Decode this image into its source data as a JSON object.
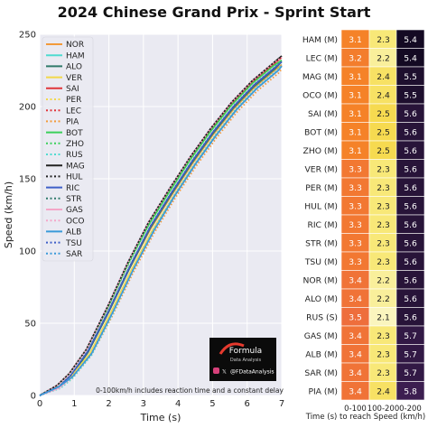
{
  "title": "2024 Chinese Grand Prix - Sprint Start",
  "badge": {
    "brand": "Formula",
    "tagline": "Data Analysis",
    "handle": "@FDataAnalysis",
    "note": "0-100km/h includes reaction time and a constant delay"
  },
  "chart_data": [
    {
      "type": "line",
      "xlabel": "Time (s)",
      "ylabel": "Speed (km/h)",
      "xlim": [
        0,
        7
      ],
      "ylim": [
        0,
        250
      ],
      "xticks": [
        0,
        1,
        2,
        3,
        4,
        5,
        6,
        7
      ],
      "yticks": [
        0,
        50,
        100,
        150,
        200,
        250
      ],
      "grid": true,
      "legend_position": "top-left",
      "series": [
        {
          "name": "NOR",
          "color": "#f29a3a",
          "dash": "solid",
          "x": [
            0,
            0.55,
            0.9,
            1.4,
            2,
            2.6,
            3.2,
            3.8,
            4.4,
            5,
            5.6,
            6.2,
            6.8,
            7
          ],
          "y": [
            0,
            6,
            14,
            30,
            58,
            88,
            115,
            138,
            160,
            180,
            198,
            213,
            225,
            229
          ]
        },
        {
          "name": "HAM",
          "color": "#4fdbd0",
          "dash": "solid",
          "x": [
            0,
            0.5,
            0.85,
            1.35,
            1.95,
            2.55,
            3.15,
            3.75,
            4.35,
            4.95,
            5.55,
            6.15,
            6.75,
            7
          ],
          "y": [
            0,
            7,
            15,
            32,
            61,
            92,
            120,
            143,
            165,
            185,
            203,
            218,
            230,
            235
          ]
        },
        {
          "name": "ALO",
          "color": "#2f7a6a",
          "dash": "solid",
          "x": [
            0,
            0.55,
            0.9,
            1.4,
            2,
            2.6,
            3.2,
            3.8,
            4.4,
            5,
            5.6,
            6.2,
            6.8,
            7
          ],
          "y": [
            0,
            6,
            13,
            30,
            58,
            88,
            116,
            139,
            161,
            181,
            199,
            214,
            226,
            231
          ]
        },
        {
          "name": "VER",
          "color": "#f2d84a",
          "dash": "solid",
          "x": [
            0,
            0.55,
            0.9,
            1.45,
            2.05,
            2.65,
            3.25,
            3.85,
            4.45,
            5.05,
            5.65,
            6.25,
            6.85,
            7
          ],
          "y": [
            0,
            6,
            13,
            29,
            57,
            87,
            114,
            137,
            159,
            179,
            197,
            212,
            224,
            228
          ]
        },
        {
          "name": "SAI",
          "color": "#e0353a",
          "dash": "solid",
          "x": [
            0,
            0.5,
            0.85,
            1.35,
            1.95,
            2.55,
            3.15,
            3.75,
            4.35,
            4.95,
            5.55,
            6.15,
            6.75,
            7
          ],
          "y": [
            0,
            7,
            15,
            32,
            60,
            91,
            119,
            142,
            164,
            184,
            202,
            217,
            229,
            234
          ]
        },
        {
          "name": "PER",
          "color": "#f2d84a",
          "dash": "dotted",
          "x": [
            0,
            0.55,
            0.9,
            1.45,
            2.05,
            2.65,
            3.25,
            3.85,
            4.45,
            5.05,
            5.65,
            6.25,
            6.85,
            7
          ],
          "y": [
            0,
            6,
            13,
            29,
            56,
            86,
            113,
            137,
            159,
            179,
            197,
            212,
            224,
            228
          ]
        },
        {
          "name": "LEC",
          "color": "#e0353a",
          "dash": "dotted",
          "x": [
            0,
            0.5,
            0.85,
            1.35,
            1.95,
            2.55,
            3.15,
            3.75,
            4.35,
            4.95,
            5.55,
            6.15,
            6.75,
            7
          ],
          "y": [
            0,
            7,
            15,
            32,
            61,
            92,
            120,
            143,
            165,
            185,
            203,
            218,
            230,
            235
          ]
        },
        {
          "name": "PIA",
          "color": "#f29a3a",
          "dash": "dotted",
          "x": [
            0,
            0.55,
            0.95,
            1.5,
            2.1,
            2.7,
            3.3,
            3.9,
            4.5,
            5.1,
            5.7,
            6.3,
            6.9,
            7
          ],
          "y": [
            0,
            5,
            12,
            28,
            55,
            85,
            112,
            136,
            158,
            178,
            196,
            211,
            223,
            226
          ]
        },
        {
          "name": "BOT",
          "color": "#3ad05a",
          "dash": "solid",
          "x": [
            0,
            0.5,
            0.85,
            1.35,
            1.95,
            2.55,
            3.15,
            3.75,
            4.35,
            4.95,
            5.55,
            6.15,
            6.75,
            7
          ],
          "y": [
            0,
            7,
            15,
            32,
            60,
            91,
            118,
            141,
            163,
            183,
            201,
            216,
            228,
            232
          ]
        },
        {
          "name": "ZHO",
          "color": "#3ad05a",
          "dash": "dotted",
          "x": [
            0,
            0.5,
            0.85,
            1.35,
            1.95,
            2.55,
            3.15,
            3.75,
            4.35,
            4.95,
            5.55,
            6.15,
            6.75,
            7
          ],
          "y": [
            0,
            7,
            15,
            32,
            60,
            90,
            118,
            141,
            163,
            183,
            201,
            216,
            228,
            232
          ]
        },
        {
          "name": "RUS",
          "color": "#4fdbd0",
          "dash": "dotted",
          "x": [
            0,
            0.6,
            0.95,
            1.5,
            2.1,
            2.7,
            3.3,
            3.9,
            4.5,
            5.1,
            5.7,
            6.3,
            6.9,
            7
          ],
          "y": [
            0,
            5,
            12,
            28,
            56,
            87,
            115,
            139,
            161,
            181,
            199,
            214,
            226,
            229
          ]
        },
        {
          "name": "MAG",
          "color": "#222222",
          "dash": "solid",
          "x": [
            0,
            0.5,
            0.85,
            1.35,
            1.95,
            2.55,
            3.15,
            3.75,
            4.35,
            4.95,
            5.55,
            6.15,
            6.75,
            7
          ],
          "y": [
            0,
            7,
            15,
            32,
            61,
            92,
            120,
            143,
            165,
            185,
            203,
            218,
            230,
            235
          ]
        },
        {
          "name": "HUL",
          "color": "#222222",
          "dash": "dotted",
          "x": [
            0,
            0.55,
            0.9,
            1.4,
            2,
            2.6,
            3.2,
            3.8,
            4.4,
            5,
            5.6,
            6.2,
            6.8,
            7
          ],
          "y": [
            0,
            6,
            14,
            31,
            59,
            89,
            117,
            140,
            162,
            182,
            200,
            215,
            227,
            231
          ]
        },
        {
          "name": "RIC",
          "color": "#3f5fc8",
          "dash": "solid",
          "x": [
            0,
            0.55,
            0.9,
            1.4,
            2,
            2.6,
            3.2,
            3.8,
            4.4,
            5,
            5.6,
            6.2,
            6.8,
            7
          ],
          "y": [
            0,
            6,
            14,
            31,
            59,
            89,
            117,
            140,
            162,
            182,
            200,
            215,
            227,
            231
          ]
        },
        {
          "name": "STR",
          "color": "#2f7a6a",
          "dash": "dotted",
          "x": [
            0,
            0.55,
            0.9,
            1.4,
            2,
            2.6,
            3.2,
            3.8,
            4.4,
            5,
            5.6,
            6.2,
            6.8,
            7
          ],
          "y": [
            0,
            6,
            14,
            31,
            59,
            89,
            117,
            140,
            162,
            182,
            200,
            215,
            227,
            231
          ]
        },
        {
          "name": "GAS",
          "color": "#f4a6c8",
          "dash": "solid",
          "x": [
            0,
            0.55,
            0.95,
            1.5,
            2.1,
            2.7,
            3.3,
            3.9,
            4.5,
            5.1,
            5.7,
            6.3,
            6.9,
            7
          ],
          "y": [
            0,
            5,
            13,
            29,
            57,
            87,
            114,
            138,
            160,
            180,
            198,
            213,
            225,
            228
          ]
        },
        {
          "name": "OCO",
          "color": "#f4a6c8",
          "dash": "dotted",
          "x": [
            0,
            0.5,
            0.85,
            1.35,
            1.95,
            2.55,
            3.15,
            3.75,
            4.35,
            4.95,
            5.55,
            6.15,
            6.75,
            7
          ],
          "y": [
            0,
            7,
            15,
            32,
            61,
            92,
            120,
            143,
            165,
            185,
            203,
            218,
            230,
            234
          ]
        },
        {
          "name": "ALB",
          "color": "#3a9ad9",
          "dash": "solid",
          "x": [
            0,
            0.55,
            0.95,
            1.5,
            2.1,
            2.7,
            3.3,
            3.9,
            4.5,
            5.1,
            5.7,
            6.3,
            6.9,
            7
          ],
          "y": [
            0,
            6,
            13,
            29,
            57,
            87,
            114,
            138,
            160,
            180,
            198,
            213,
            225,
            228
          ]
        },
        {
          "name": "TSU",
          "color": "#3f5fc8",
          "dash": "dotted",
          "x": [
            0,
            0.55,
            0.9,
            1.4,
            2,
            2.6,
            3.2,
            3.8,
            4.4,
            5,
            5.6,
            6.2,
            6.8,
            7
          ],
          "y": [
            0,
            6,
            14,
            31,
            59,
            89,
            117,
            140,
            162,
            182,
            200,
            215,
            227,
            231
          ]
        },
        {
          "name": "SAR",
          "color": "#3a9ad9",
          "dash": "dotted",
          "x": [
            0,
            0.55,
            0.95,
            1.5,
            2.1,
            2.7,
            3.3,
            3.9,
            4.5,
            5.1,
            5.7,
            6.3,
            6.9,
            7
          ],
          "y": [
            0,
            6,
            13,
            29,
            57,
            87,
            114,
            138,
            160,
            180,
            198,
            213,
            225,
            228
          ]
        }
      ]
    },
    {
      "type": "table",
      "xlabel": "Time (s) to reach Speed (km/h)",
      "columns": [
        "0-100",
        "100-200",
        "0-200"
      ],
      "rows": [
        {
          "label": "HAM (M)",
          "values": [
            3.1,
            2.3,
            5.4
          ]
        },
        {
          "label": "LEC (M)",
          "values": [
            3.2,
            2.2,
            5.4
          ]
        },
        {
          "label": "MAG (M)",
          "values": [
            3.1,
            2.4,
            5.5
          ]
        },
        {
          "label": "OCO (M)",
          "values": [
            3.1,
            2.4,
            5.5
          ]
        },
        {
          "label": "SAI (M)",
          "values": [
            3.1,
            2.5,
            5.6
          ]
        },
        {
          "label": "BOT (M)",
          "values": [
            3.1,
            2.5,
            5.6
          ]
        },
        {
          "label": "ZHO (M)",
          "values": [
            3.1,
            2.5,
            5.6
          ]
        },
        {
          "label": "VER (M)",
          "values": [
            3.3,
            2.3,
            5.6
          ]
        },
        {
          "label": "PER (M)",
          "values": [
            3.3,
            2.3,
            5.6
          ]
        },
        {
          "label": "HUL (M)",
          "values": [
            3.3,
            2.3,
            5.6
          ]
        },
        {
          "label": "RIC (M)",
          "values": [
            3.3,
            2.3,
            5.6
          ]
        },
        {
          "label": "STR (M)",
          "values": [
            3.3,
            2.3,
            5.6
          ]
        },
        {
          "label": "TSU (M)",
          "values": [
            3.3,
            2.3,
            5.6
          ]
        },
        {
          "label": "NOR (M)",
          "values": [
            3.4,
            2.2,
            5.6
          ]
        },
        {
          "label": "ALO (M)",
          "values": [
            3.4,
            2.2,
            5.6
          ]
        },
        {
          "label": "RUS (S)",
          "values": [
            3.5,
            2.1,
            5.6
          ]
        },
        {
          "label": "GAS (M)",
          "values": [
            3.4,
            2.3,
            5.7
          ]
        },
        {
          "label": "ALB (M)",
          "values": [
            3.4,
            2.3,
            5.7
          ]
        },
        {
          "label": "SAR (M)",
          "values": [
            3.4,
            2.3,
            5.7
          ]
        },
        {
          "label": "PIA (M)",
          "values": [
            3.4,
            2.4,
            5.8
          ]
        }
      ]
    }
  ]
}
